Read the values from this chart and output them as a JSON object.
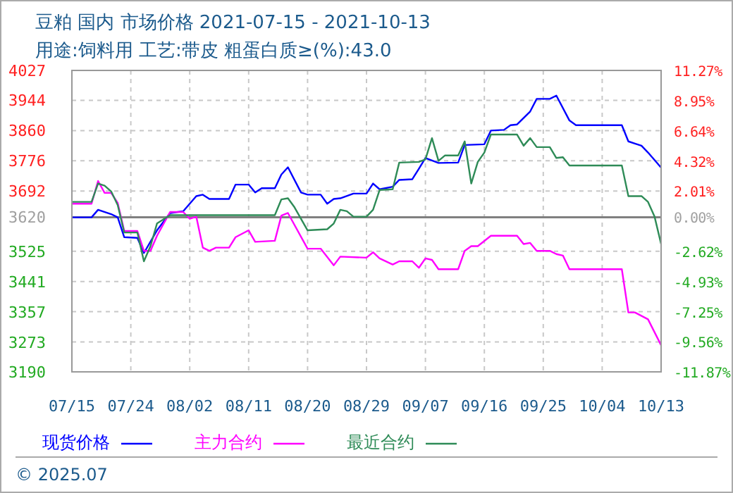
{
  "chart_data": {
    "type": "line",
    "title": "豆粕 国内 市场价格 2021-07-15 - 2021-10-13",
    "subtitle": "用途:饲料用 工艺:带皮 粗蛋白质≥(%):43.0",
    "annotations": [
      "© 2025.07"
    ],
    "xlim": [
      "--07-15",
      "--10-13"
    ],
    "xticks": [
      {
        "value": "--07-15",
        "label": "07/15"
      },
      {
        "value": "--07-24",
        "label": "07/24"
      },
      {
        "value": "--08-02",
        "label": "08/02"
      },
      {
        "value": "--08-11",
        "label": "08/11"
      },
      {
        "value": "--08-20",
        "label": "08/20"
      },
      {
        "value": "--08-29",
        "label": "08/29"
      },
      {
        "value": "--09-07",
        "label": "09/07"
      },
      {
        "value": "--09-16",
        "label": "09/16"
      },
      {
        "value": "--09-25",
        "label": "09/25"
      },
      {
        "value": "--10-04",
        "label": "10/04"
      },
      {
        "value": "--10-13",
        "label": "10/13"
      }
    ],
    "ylim": [
      3190,
      4027
    ],
    "yticks": [
      3190,
      3273,
      3357,
      3441,
      3525,
      3620,
      3692,
      3776,
      3860,
      3944,
      4027
    ],
    "y2lim": [
      -11.87,
      11.27
    ],
    "y2ticks": [
      {
        "value": -11.87,
        "label": "-11.87%"
      },
      {
        "value": -9.56,
        "label": "-9.56%"
      },
      {
        "value": -7.25,
        "label": "-7.25%"
      },
      {
        "value": -4.93,
        "label": "-4.93%"
      },
      {
        "value": -2.62,
        "label": "-2.62%"
      },
      {
        "value": 0,
        "label": "0.00%"
      },
      {
        "value": 2.01,
        "label": "2.01%"
      },
      {
        "value": 4.32,
        "label": "4.32%"
      },
      {
        "value": 6.64,
        "label": "6.64%"
      },
      {
        "value": 8.95,
        "label": "8.95%"
      },
      {
        "value": 11.27,
        "label": "11.27%"
      }
    ],
    "ref_lines": [
      {
        "axis": "y2",
        "value": 0,
        "color": "#808080"
      }
    ],
    "grid": true,
    "legend": "bottom",
    "line_style": "solid",
    "series": [
      {
        "name": "现货价格",
        "color": "#0000ff",
        "x": [
          "--07-15",
          "--07-18",
          "--07-19",
          "--07-21",
          "--07-22",
          "--07-23",
          "--07-25",
          "--07-26",
          "--07-28",
          "--07-30",
          "--08-01",
          "--08-03",
          "--08-04",
          "--08-05",
          "--08-08",
          "--08-09",
          "--08-11",
          "--08-12",
          "--08-13",
          "--08-15",
          "--08-16",
          "--08-17",
          "--08-19",
          "--08-20",
          "--08-22",
          "--08-23",
          "--08-24",
          "--08-25",
          "--08-27",
          "--08-29",
          "--08-30",
          "--08-31",
          "--09-02",
          "--09-03",
          "--09-05",
          "--09-06",
          "--09-07",
          "--09-09",
          "--09-12",
          "--09-13",
          "--09-16",
          "--09-17",
          "--09-19",
          "--09-20",
          "--09-21",
          "--09-23",
          "--09-24",
          "--09-26",
          "--09-27",
          "--09-29",
          "--09-30",
          "--10-07",
          "--10-08",
          "--10-09",
          "--10-10",
          "--10-11",
          "--10-13"
        ],
        "values": [
          3619,
          3619,
          3640,
          3628,
          3619,
          3564,
          3562,
          3520,
          3583,
          3631,
          3636,
          3678,
          3682,
          3670,
          3670,
          3710,
          3710,
          3688,
          3700,
          3700,
          3738,
          3758,
          3688,
          3682,
          3682,
          3657,
          3670,
          3672,
          3685,
          3685,
          3713,
          3697,
          3704,
          3723,
          3725,
          3754,
          3784,
          3770,
          3771,
          3820,
          3822,
          3860,
          3862,
          3875,
          3877,
          3913,
          3948,
          3948,
          3957,
          3888,
          3875,
          3875,
          3830,
          3824,
          3818,
          3799,
          3757
        ]
      },
      {
        "name": "主力合约",
        "color": "#ff00ff",
        "x": [
          "--07-15",
          "--07-18",
          "--07-19",
          "--07-20",
          "--07-21",
          "--07-22",
          "--07-23",
          "--07-25",
          "--07-26",
          "--07-27",
          "--07-28",
          "--07-30",
          "--08-01",
          "--08-02",
          "--08-03",
          "--08-04",
          "--08-05",
          "--08-06",
          "--08-08",
          "--08-09",
          "--08-11",
          "--08-12",
          "--08-15",
          "--08-16",
          "--08-17",
          "--08-20",
          "--08-22",
          "--08-24",
          "--08-25",
          "--08-29",
          "--08-30",
          "--08-31",
          "--09-02",
          "--09-03",
          "--09-05",
          "--09-06",
          "--09-07",
          "--09-08",
          "--09-09",
          "--09-12",
          "--09-13",
          "--09-14",
          "--09-15",
          "--09-17",
          "--09-21",
          "--09-22",
          "--09-23",
          "--09-24",
          "--09-26",
          "--09-27",
          "--09-28",
          "--09-29",
          "--10-07",
          "--10-08",
          "--10-09",
          "--10-11",
          "--10-13"
        ],
        "values": [
          3657,
          3657,
          3720,
          3687,
          3687,
          3659,
          3581,
          3581,
          3526,
          3526,
          3568,
          3634,
          3634,
          3615,
          3621,
          3535,
          3526,
          3535,
          3535,
          3564,
          3583,
          3551,
          3554,
          3624,
          3631,
          3532,
          3532,
          3486,
          3510,
          3507,
          3522,
          3505,
          3488,
          3497,
          3497,
          3479,
          3505,
          3501,
          3475,
          3475,
          3526,
          3539,
          3539,
          3568,
          3568,
          3545,
          3548,
          3526,
          3526,
          3517,
          3513,
          3475,
          3475,
          3355,
          3355,
          3336,
          3264
        ]
      },
      {
        "name": "最近合约",
        "color": "#2e8b57",
        "x": [
          "--07-15",
          "--07-18",
          "--07-19",
          "--07-20",
          "--07-21",
          "--07-22",
          "--07-23",
          "--07-25",
          "--07-26",
          "--07-27",
          "--07-28",
          "--07-30",
          "--08-15",
          "--08-16",
          "--08-17",
          "--08-18",
          "--08-20",
          "--08-23",
          "--08-24",
          "--08-25",
          "--08-26",
          "--08-27",
          "--08-29",
          "--08-30",
          "--08-31",
          "--09-02",
          "--09-03",
          "--09-06",
          "--09-07",
          "--09-08",
          "--09-09",
          "--09-10",
          "--09-12",
          "--09-13",
          "--09-14",
          "--09-15",
          "--09-16",
          "--09-17",
          "--09-21",
          "--09-22",
          "--09-23",
          "--09-24",
          "--09-26",
          "--09-27",
          "--09-28",
          "--09-29",
          "--10-07",
          "--10-08",
          "--10-10",
          "--10-11",
          "--10-12",
          "--10-13"
        ],
        "values": [
          3662,
          3662,
          3713,
          3707,
          3691,
          3653,
          3577,
          3577,
          3497,
          3539,
          3602,
          3625,
          3625,
          3669,
          3672,
          3647,
          3583,
          3586,
          3602,
          3640,
          3636,
          3621,
          3621,
          3640,
          3695,
          3697,
          3771,
          3773,
          3780,
          3839,
          3776,
          3791,
          3791,
          3830,
          3713,
          3773,
          3799,
          3849,
          3849,
          3818,
          3839,
          3814,
          3814,
          3784,
          3786,
          3763,
          3763,
          3678,
          3678,
          3662,
          3621,
          3545
        ]
      }
    ]
  }
}
